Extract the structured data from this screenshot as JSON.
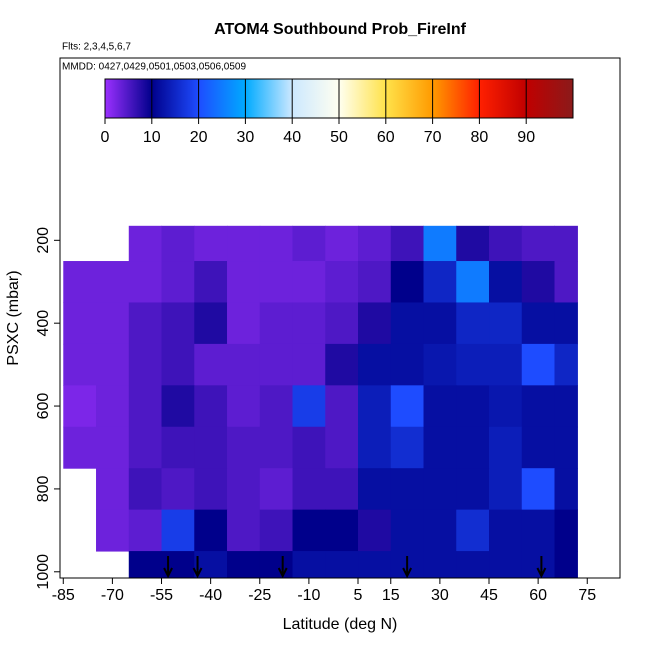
{
  "chart_data": {
    "type": "heatmap",
    "title": "ATOM4 Southbound Prob_FireInf",
    "subtitle": "Flts: 2,3,4,5,6,7",
    "annotation": "MMDD: 0427,0429,0501,0503,0506,0509",
    "x_label": "Latitude (deg N)",
    "y_label": "PSXC (mbar)",
    "xlim": [
      -86,
      85
    ],
    "xticks": [
      -85,
      -70,
      -55,
      -40,
      -25,
      -10,
      5,
      15,
      30,
      45,
      60,
      75
    ],
    "ylim": [
      1015,
      -240
    ],
    "yticks": [
      200,
      400,
      600,
      800,
      1000
    ],
    "x_edges": [
      -85,
      -75,
      -65,
      -55,
      -45,
      -35,
      -25,
      -15,
      -5,
      5,
      15,
      25,
      35,
      45,
      55,
      65,
      72
    ],
    "y_edges": [
      165,
      250,
      350,
      450,
      550,
      650,
      750,
      850,
      950,
      1015
    ],
    "z": [
      [
        null,
        null,
        3,
        4,
        3,
        3,
        3,
        4,
        3,
        4,
        6,
        25,
        8,
        6,
        5,
        5
      ],
      [
        3,
        3,
        3,
        4,
        6,
        3,
        3,
        3,
        4,
        5,
        10,
        15,
        25,
        12,
        8,
        5
      ],
      [
        3,
        3,
        5,
        6,
        8,
        3,
        4,
        4,
        5,
        8,
        12,
        12,
        15,
        15,
        12,
        12
      ],
      [
        3,
        3,
        5,
        6,
        4,
        4,
        4,
        4,
        8,
        12,
        12,
        13,
        14,
        14,
        20,
        15
      ],
      [
        2,
        3,
        5,
        8,
        6,
        4,
        5,
        18,
        5,
        14,
        20,
        12,
        12,
        13,
        12,
        12
      ],
      [
        3,
        3,
        5,
        6,
        6,
        5,
        5,
        6,
        5,
        14,
        16,
        12,
        12,
        14,
        12,
        12
      ],
      [
        null,
        3,
        6,
        5,
        6,
        5,
        4,
        6,
        6,
        12,
        12,
        12,
        12,
        14,
        20,
        12
      ],
      [
        null,
        3,
        4,
        18,
        10,
        5,
        6,
        10,
        10,
        8,
        12,
        12,
        16,
        12,
        12,
        10
      ],
      [
        null,
        null,
        10,
        10,
        12,
        10,
        10,
        12,
        12,
        12,
        12,
        12,
        12,
        12,
        12,
        10
      ]
    ],
    "arrow_lats": [
      -53,
      -44,
      -18,
      20,
      61
    ],
    "colorbar": {
      "lim": [
        0,
        100
      ],
      "ticks": [
        0,
        10,
        20,
        30,
        40,
        50,
        60,
        70,
        80,
        90
      ],
      "color_stops": [
        [
          0,
          "#9b30ff"
        ],
        [
          10,
          "#00008b"
        ],
        [
          20,
          "#1e4cff"
        ],
        [
          30,
          "#00aaff"
        ],
        [
          40,
          "#cce8ff"
        ],
        [
          50,
          "#fffff0"
        ],
        [
          60,
          "#ffe24a"
        ],
        [
          70,
          "#ff9a00"
        ],
        [
          80,
          "#ff2000"
        ],
        [
          90,
          "#c00000"
        ],
        [
          100,
          "#8b1a1a"
        ]
      ]
    }
  }
}
